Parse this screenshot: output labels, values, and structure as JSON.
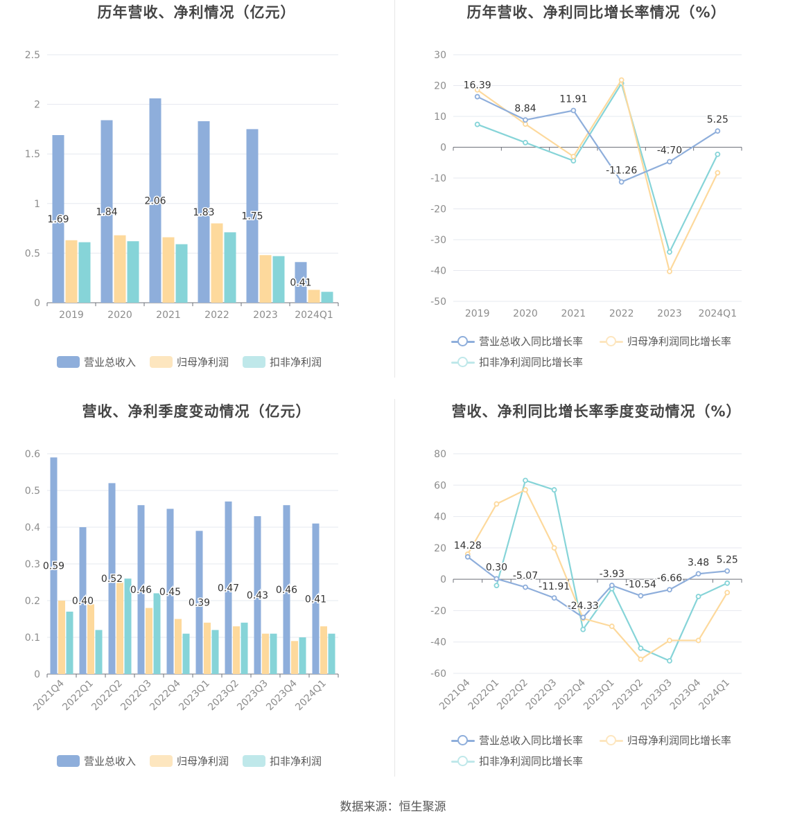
{
  "colors": {
    "revenue": "#8eaedb",
    "net_profit": "#fdd99c",
    "deducted_profit": "#86d4d8",
    "grid": "#e6e8ef",
    "axis": "#8c8c8c"
  },
  "source": "数据来源：恒生聚源",
  "chart_data": [
    {
      "id": "annual_values",
      "type": "bar",
      "title": "历年营收、净利情况（亿元）",
      "categories": [
        "2019",
        "2020",
        "2021",
        "2022",
        "2023",
        "2024Q1"
      ],
      "series": [
        {
          "name": "营业总收入",
          "values": [
            1.69,
            1.84,
            2.06,
            1.83,
            1.75,
            0.41
          ],
          "labels": [
            "1.69",
            "1.84",
            "2.06",
            "1.83",
            "1.75",
            "0.41"
          ]
        },
        {
          "name": "归母净利润",
          "values": [
            0.63,
            0.68,
            0.66,
            0.8,
            0.48,
            0.13
          ]
        },
        {
          "name": "扣非净利润",
          "values": [
            0.61,
            0.62,
            0.59,
            0.71,
            0.47,
            0.11
          ]
        }
      ],
      "yticks": [
        "0",
        "0.5",
        "1",
        "1.5",
        "2",
        "2.5"
      ],
      "ylim": [
        0,
        2.5
      ]
    },
    {
      "id": "annual_growth",
      "type": "line",
      "title": "历年营收、净利同比增长率情况（%）",
      "categories": [
        "2019",
        "2020",
        "2021",
        "2022",
        "2023",
        "2024Q1"
      ],
      "series": [
        {
          "name": "营业总收入同比增长率",
          "values": [
            16.39,
            8.84,
            11.91,
            -11.26,
            -4.7,
            5.25
          ],
          "labels": [
            "16.39",
            "8.84",
            "11.91",
            "-11.26",
            "-4.70",
            "5.25"
          ]
        },
        {
          "name": "归母净利润同比增长率",
          "values": [
            18.6,
            7.5,
            -3.0,
            21.8,
            -40.3,
            -8.3
          ]
        },
        {
          "name": "扣非净利润同比增长率",
          "values": [
            7.4,
            1.5,
            -4.4,
            20.7,
            -34.0,
            -2.3
          ]
        }
      ],
      "yticks": [
        "-50",
        "-40",
        "-30",
        "-20",
        "-10",
        "0",
        "10",
        "20",
        "30"
      ],
      "ylim": [
        -50,
        30
      ]
    },
    {
      "id": "quarterly_values",
      "type": "bar",
      "title": "营收、净利季度变动情况（亿元）",
      "categories": [
        "2021Q4",
        "2022Q1",
        "2022Q2",
        "2022Q3",
        "2022Q4",
        "2023Q1",
        "2023Q2",
        "2023Q3",
        "2023Q4",
        "2024Q1"
      ],
      "series": [
        {
          "name": "营业总收入",
          "values": [
            0.59,
            0.4,
            0.52,
            0.46,
            0.45,
            0.39,
            0.47,
            0.43,
            0.46,
            0.41
          ],
          "labels": [
            "0.59",
            "0.40",
            "0.52",
            "0.46",
            "0.45",
            "0.39",
            "0.47",
            "0.43",
            "0.46",
            "0.41"
          ]
        },
        {
          "name": "归母净利润",
          "values": [
            0.2,
            0.19,
            0.25,
            0.18,
            0.15,
            0.14,
            0.13,
            0.11,
            0.09,
            0.13
          ]
        },
        {
          "name": "扣非净利润",
          "values": [
            0.17,
            0.12,
            0.26,
            0.22,
            0.11,
            0.12,
            0.14,
            0.11,
            0.1,
            0.11
          ]
        }
      ],
      "yticks": [
        "0",
        "0.1",
        "0.2",
        "0.3",
        "0.4",
        "0.5",
        "0.6"
      ],
      "ylim": [
        0,
        0.6
      ]
    },
    {
      "id": "quarterly_growth",
      "type": "line",
      "title": "营收、净利同比增长率季度变动情况（%）",
      "categories": [
        "2021Q4",
        "2022Q1",
        "2022Q2",
        "2022Q3",
        "2022Q4",
        "2023Q1",
        "2023Q2",
        "2023Q3",
        "2023Q4",
        "2024Q1"
      ],
      "series": [
        {
          "name": "营业总收入同比增长率",
          "values": [
            14.28,
            0.3,
            -5.07,
            -11.91,
            -24.33,
            -3.93,
            -10.54,
            -6.66,
            3.48,
            5.25
          ],
          "labels": [
            "14.28",
            "0.30",
            "-5.07",
            "-11.91",
            "-24.33",
            "-3.93",
            "-10.54",
            "-6.66",
            "3.48",
            "5.25"
          ]
        },
        {
          "name": "归母净利润同比增长率",
          "values": [
            16.0,
            48.0,
            57.0,
            20.0,
            -25.0,
            -30.0,
            -51.0,
            -39.0,
            -39.0,
            -8.5
          ]
        },
        {
          "name": "扣非净利润同比增长率",
          "values": [
            null,
            -4.0,
            63.0,
            57.0,
            -32.0,
            -6.0,
            -44.0,
            -52.0,
            -11.0,
            -2.5
          ]
        }
      ],
      "yticks": [
        "-60",
        "-40",
        "-20",
        "0",
        "20",
        "40",
        "60",
        "80"
      ],
      "ylim": [
        -60,
        80
      ]
    }
  ]
}
